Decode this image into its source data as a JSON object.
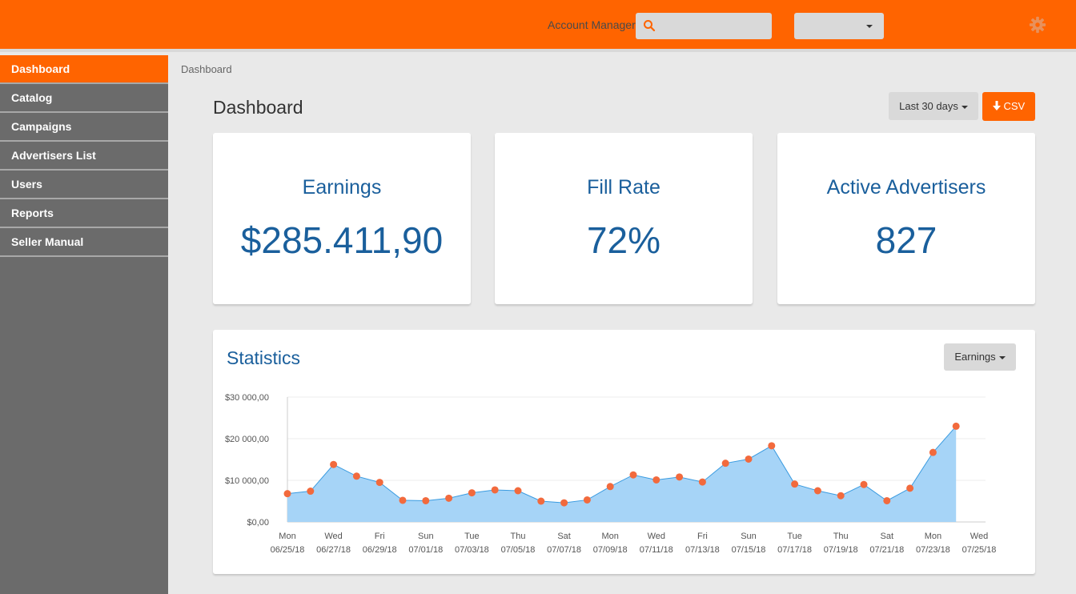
{
  "header": {
    "account_manager_label": "Account Manager",
    "search_value": "",
    "select_value": ""
  },
  "sidebar": {
    "items": [
      {
        "label": "Dashboard",
        "active": true
      },
      {
        "label": "Catalog"
      },
      {
        "label": "Campaigns"
      },
      {
        "label": "Advertisers List"
      },
      {
        "label": "Users"
      },
      {
        "label": "Reports"
      },
      {
        "label": "Seller Manual"
      }
    ]
  },
  "breadcrumb": "Dashboard",
  "page": {
    "title": "Dashboard",
    "range_button": "Last 30 days",
    "csv_button": "CSV"
  },
  "cards": {
    "earnings": {
      "label": "Earnings",
      "value": "$285.411,90"
    },
    "fill_rate": {
      "label": "Fill Rate",
      "value": "72%"
    },
    "advertisers": {
      "label": "Active Advertisers",
      "value": "827"
    }
  },
  "statistics": {
    "title": "Statistics",
    "metric_button": "Earnings"
  },
  "colors": {
    "accent": "#ff6400",
    "primary_text": "#1a5f9c",
    "sidebar_bg": "#6b6b6b",
    "area_fill": "#a6d4f7",
    "point": "#f26a3d"
  },
  "chart_data": {
    "type": "area",
    "ylim": [
      0,
      30000
    ],
    "y_ticks": [
      "$0,00",
      "$10 000,00",
      "$20 000,00",
      "$30 000,00"
    ],
    "x_ticks": [
      {
        "day": "Mon",
        "date": "06/25/18"
      },
      {
        "day": "Wed",
        "date": "06/27/18"
      },
      {
        "day": "Fri",
        "date": "06/29/18"
      },
      {
        "day": "Sun",
        "date": "07/01/18"
      },
      {
        "day": "Tue",
        "date": "07/03/18"
      },
      {
        "day": "Thu",
        "date": "07/05/18"
      },
      {
        "day": "Sat",
        "date": "07/07/18"
      },
      {
        "day": "Mon",
        "date": "07/09/18"
      },
      {
        "day": "Wed",
        "date": "07/11/18"
      },
      {
        "day": "Fri",
        "date": "07/13/18"
      },
      {
        "day": "Sun",
        "date": "07/15/18"
      },
      {
        "day": "Tue",
        "date": "07/17/18"
      },
      {
        "day": "Thu",
        "date": "07/19/18"
      },
      {
        "day": "Sat",
        "date": "07/21/18"
      },
      {
        "day": "Mon",
        "date": "07/23/18"
      },
      {
        "day": "Wed",
        "date": "07/25/18"
      }
    ],
    "series": [
      {
        "x": [
          "06/25/18",
          "06/26/18",
          "06/27/18",
          "06/28/18",
          "06/29/18",
          "06/30/18",
          "07/01/18",
          "07/02/18",
          "07/03/18",
          "07/04/18",
          "07/05/18",
          "07/06/18",
          "07/07/18",
          "07/08/18",
          "07/09/18",
          "07/10/18",
          "07/11/18",
          "07/12/18",
          "07/13/18",
          "07/14/18",
          "07/15/18",
          "07/16/18",
          "07/17/18",
          "07/18/18",
          "07/19/18",
          "07/20/18",
          "07/21/18",
          "07/22/18",
          "07/23/18",
          "07/24/18"
        ],
        "values": [
          6800,
          7400,
          13800,
          11000,
          9500,
          5200,
          5100,
          5700,
          7000,
          7700,
          7500,
          5000,
          4600,
          5300,
          8500,
          11300,
          10100,
          10800,
          9600,
          14100,
          15100,
          18300,
          9100,
          7500,
          6300,
          9000,
          5100,
          8100,
          16700,
          23000
        ]
      }
    ]
  }
}
